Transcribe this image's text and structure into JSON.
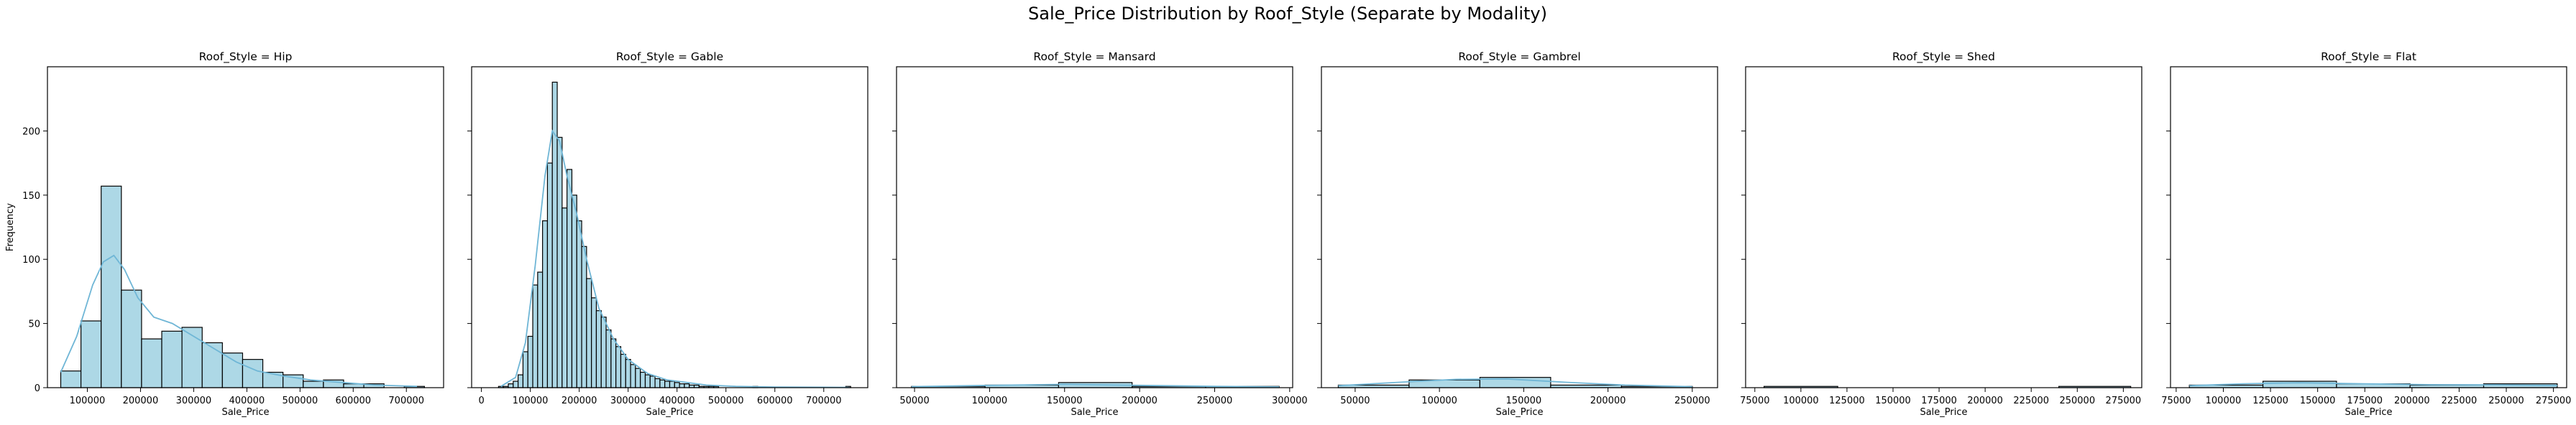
{
  "figure": {
    "suptitle": "Sale_Price Distribution by Roof_Style (Separate by Modality)"
  },
  "colors": {
    "bar_fill": "#add8e6",
    "bar_stroke": "#000000",
    "kde": "#6fb6d6"
  },
  "chart_data": [
    {
      "type": "bar",
      "title": "Roof_Style = Hip",
      "xlabel": "Sale_Price",
      "ylabel": "Frequency",
      "xlim": [
        25000,
        770000
      ],
      "ylim": [
        0,
        250
      ],
      "xticks": [
        100000,
        200000,
        300000,
        400000,
        500000,
        600000,
        700000
      ],
      "yticks": [
        0,
        50,
        100,
        150,
        200
      ],
      "bins": [
        {
          "x0": 50000,
          "x1": 88000,
          "count": 13
        },
        {
          "x0": 88000,
          "x1": 126000,
          "count": 52
        },
        {
          "x0": 126000,
          "x1": 164000,
          "count": 157
        },
        {
          "x0": 164000,
          "x1": 202000,
          "count": 76
        },
        {
          "x0": 202000,
          "x1": 240000,
          "count": 38
        },
        {
          "x0": 240000,
          "x1": 278000,
          "count": 44
        },
        {
          "x0": 278000,
          "x1": 316000,
          "count": 47
        },
        {
          "x0": 316000,
          "x1": 354000,
          "count": 35
        },
        {
          "x0": 354000,
          "x1": 392000,
          "count": 27
        },
        {
          "x0": 392000,
          "x1": 430000,
          "count": 22
        },
        {
          "x0": 430000,
          "x1": 468000,
          "count": 12
        },
        {
          "x0": 468000,
          "x1": 506000,
          "count": 10
        },
        {
          "x0": 506000,
          "x1": 544000,
          "count": 5
        },
        {
          "x0": 544000,
          "x1": 582000,
          "count": 6
        },
        {
          "x0": 582000,
          "x1": 620000,
          "count": 3
        },
        {
          "x0": 620000,
          "x1": 658000,
          "count": 3
        },
        {
          "x0": 658000,
          "x1": 696000,
          "count": 0
        },
        {
          "x0": 696000,
          "x1": 734000,
          "count": 1
        }
      ],
      "kde": [
        [
          50000,
          12
        ],
        [
          80000,
          40
        ],
        [
          110000,
          80
        ],
        [
          130000,
          98
        ],
        [
          150000,
          103
        ],
        [
          170000,
          92
        ],
        [
          195000,
          70
        ],
        [
          225000,
          55
        ],
        [
          260000,
          50
        ],
        [
          300000,
          40
        ],
        [
          340000,
          30
        ],
        [
          380000,
          20
        ],
        [
          420000,
          13
        ],
        [
          470000,
          9
        ],
        [
          520000,
          6
        ],
        [
          580000,
          4
        ],
        [
          640000,
          2
        ],
        [
          720000,
          1
        ]
      ]
    },
    {
      "type": "bar",
      "title": "Roof_Style = Gable",
      "xlabel": "Sale_Price",
      "xlim": [
        -20000,
        790000
      ],
      "ylim": [
        0,
        250
      ],
      "xticks": [
        0,
        100000,
        200000,
        300000,
        400000,
        500000,
        600000,
        700000
      ],
      "yticks": [
        0,
        50,
        100,
        150,
        200
      ],
      "bins": [
        {
          "x0": 35000,
          "x1": 45000,
          "count": 1
        },
        {
          "x0": 45000,
          "x1": 55000,
          "count": 1
        },
        {
          "x0": 55000,
          "x1": 65000,
          "count": 3
        },
        {
          "x0": 65000,
          "x1": 75000,
          "count": 5
        },
        {
          "x0": 75000,
          "x1": 85000,
          "count": 10
        },
        {
          "x0": 85000,
          "x1": 95000,
          "count": 28
        },
        {
          "x0": 95000,
          "x1": 105000,
          "count": 40
        },
        {
          "x0": 105000,
          "x1": 115000,
          "count": 80
        },
        {
          "x0": 115000,
          "x1": 125000,
          "count": 90
        },
        {
          "x0": 125000,
          "x1": 135000,
          "count": 130
        },
        {
          "x0": 135000,
          "x1": 145000,
          "count": 175
        },
        {
          "x0": 145000,
          "x1": 155000,
          "count": 238
        },
        {
          "x0": 155000,
          "x1": 165000,
          "count": 195
        },
        {
          "x0": 165000,
          "x1": 175000,
          "count": 140
        },
        {
          "x0": 175000,
          "x1": 185000,
          "count": 170
        },
        {
          "x0": 185000,
          "x1": 195000,
          "count": 150
        },
        {
          "x0": 195000,
          "x1": 205000,
          "count": 130
        },
        {
          "x0": 205000,
          "x1": 215000,
          "count": 110
        },
        {
          "x0": 215000,
          "x1": 225000,
          "count": 85
        },
        {
          "x0": 225000,
          "x1": 235000,
          "count": 70
        },
        {
          "x0": 235000,
          "x1": 245000,
          "count": 60
        },
        {
          "x0": 245000,
          "x1": 255000,
          "count": 55
        },
        {
          "x0": 255000,
          "x1": 265000,
          "count": 45
        },
        {
          "x0": 265000,
          "x1": 275000,
          "count": 38
        },
        {
          "x0": 275000,
          "x1": 285000,
          "count": 32
        },
        {
          "x0": 285000,
          "x1": 295000,
          "count": 26
        },
        {
          "x0": 295000,
          "x1": 305000,
          "count": 22
        },
        {
          "x0": 305000,
          "x1": 315000,
          "count": 18
        },
        {
          "x0": 315000,
          "x1": 325000,
          "count": 15
        },
        {
          "x0": 325000,
          "x1": 335000,
          "count": 12
        },
        {
          "x0": 335000,
          "x1": 345000,
          "count": 10
        },
        {
          "x0": 345000,
          "x1": 355000,
          "count": 9
        },
        {
          "x0": 355000,
          "x1": 365000,
          "count": 7
        },
        {
          "x0": 365000,
          "x1": 375000,
          "count": 6
        },
        {
          "x0": 375000,
          "x1": 385000,
          "count": 5
        },
        {
          "x0": 385000,
          "x1": 395000,
          "count": 5
        },
        {
          "x0": 395000,
          "x1": 405000,
          "count": 4
        },
        {
          "x0": 405000,
          "x1": 415000,
          "count": 3
        },
        {
          "x0": 415000,
          "x1": 425000,
          "count": 3
        },
        {
          "x0": 425000,
          "x1": 435000,
          "count": 2
        },
        {
          "x0": 435000,
          "x1": 445000,
          "count": 2
        },
        {
          "x0": 445000,
          "x1": 455000,
          "count": 1
        },
        {
          "x0": 455000,
          "x1": 465000,
          "count": 1
        },
        {
          "x0": 465000,
          "x1": 475000,
          "count": 1
        },
        {
          "x0": 475000,
          "x1": 485000,
          "count": 1
        },
        {
          "x0": 555000,
          "x1": 565000,
          "count": 1
        },
        {
          "x0": 745000,
          "x1": 755000,
          "count": 1
        }
      ],
      "kde": [
        [
          40000,
          1
        ],
        [
          70000,
          8
        ],
        [
          90000,
          35
        ],
        [
          110000,
          95
        ],
        [
          130000,
          165
        ],
        [
          145000,
          200
        ],
        [
          160000,
          192
        ],
        [
          175000,
          165
        ],
        [
          195000,
          135
        ],
        [
          215000,
          100
        ],
        [
          240000,
          62
        ],
        [
          270000,
          38
        ],
        [
          300000,
          22
        ],
        [
          340000,
          11
        ],
        [
          380000,
          6
        ],
        [
          420000,
          4
        ],
        [
          460000,
          2
        ],
        [
          520000,
          1
        ],
        [
          600000,
          0.5
        ],
        [
          750000,
          0.2
        ]
      ]
    },
    {
      "type": "bar",
      "title": "Roof_Style = Mansard",
      "xlabel": "Sale_Price",
      "xlim": [
        38000,
        302000
      ],
      "ylim": [
        0,
        250
      ],
      "xticks": [
        50000,
        100000,
        150000,
        200000,
        250000,
        300000
      ],
      "yticks": [
        0,
        50,
        100,
        150,
        200
      ],
      "bins": [
        {
          "x0": 48000,
          "x1": 97000,
          "count": 1
        },
        {
          "x0": 97000,
          "x1": 146000,
          "count": 2
        },
        {
          "x0": 146000,
          "x1": 195000,
          "count": 4
        },
        {
          "x0": 195000,
          "x1": 244000,
          "count": 1
        },
        {
          "x0": 244000,
          "x1": 293000,
          "count": 1
        }
      ],
      "kde": [
        [
          48000,
          0.8
        ],
        [
          100000,
          1.8
        ],
        [
          150000,
          2.6
        ],
        [
          200000,
          1.8
        ],
        [
          250000,
          1.0
        ],
        [
          293000,
          0.6
        ]
      ]
    },
    {
      "type": "bar",
      "title": "Roof_Style = Gambrel",
      "xlabel": "Sale_Price",
      "xlim": [
        30000,
        265000
      ],
      "ylim": [
        0,
        250
      ],
      "xticks": [
        50000,
        100000,
        150000,
        200000,
        250000
      ],
      "yticks": [
        0,
        50,
        100,
        150,
        200
      ],
      "bins": [
        {
          "x0": 40000,
          "x1": 82000,
          "count": 2
        },
        {
          "x0": 82000,
          "x1": 124000,
          "count": 6
        },
        {
          "x0": 124000,
          "x1": 166000,
          "count": 8
        },
        {
          "x0": 166000,
          "x1": 208000,
          "count": 2
        },
        {
          "x0": 208000,
          "x1": 250000,
          "count": 1
        }
      ],
      "kde": [
        [
          40000,
          1.5
        ],
        [
          80000,
          4.5
        ],
        [
          110000,
          6.5
        ],
        [
          140000,
          6.8
        ],
        [
          175000,
          4.2
        ],
        [
          210000,
          2.0
        ],
        [
          250000,
          0.8
        ]
      ]
    },
    {
      "type": "bar",
      "title": "Roof_Style = Shed",
      "xlabel": "Sale_Price",
      "xlim": [
        70000,
        285000
      ],
      "ylim": [
        0,
        250
      ],
      "xticks": [
        75000,
        100000,
        125000,
        150000,
        175000,
        200000,
        225000,
        250000,
        275000
      ],
      "yticks": [
        0,
        50,
        100,
        150,
        200
      ],
      "bins": [
        {
          "x0": 80000,
          "x1": 120000,
          "count": 1
        },
        {
          "x0": 120000,
          "x1": 160000,
          "count": 0
        },
        {
          "x0": 160000,
          "x1": 200000,
          "count": 0
        },
        {
          "x0": 200000,
          "x1": 240000,
          "count": 0
        },
        {
          "x0": 240000,
          "x1": 279000,
          "count": 1
        }
      ],
      "kde": []
    },
    {
      "type": "bar",
      "title": "Roof_Style = Flat",
      "xlabel": "Sale_Price",
      "xlim": [
        72000,
        282000
      ],
      "ylim": [
        0,
        250
      ],
      "xticks": [
        75000,
        100000,
        125000,
        150000,
        175000,
        200000,
        225000,
        250000,
        275000
      ],
      "yticks": [
        0,
        50,
        100,
        150,
        200
      ],
      "bins": [
        {
          "x0": 82000,
          "x1": 121000,
          "count": 2
        },
        {
          "x0": 121000,
          "x1": 160000,
          "count": 5
        },
        {
          "x0": 160000,
          "x1": 199000,
          "count": 3
        },
        {
          "x0": 199000,
          "x1": 238000,
          "count": 2
        },
        {
          "x0": 238000,
          "x1": 277000,
          "count": 3
        }
      ],
      "kde": [
        [
          82000,
          1.5
        ],
        [
          110000,
          3.0
        ],
        [
          140000,
          3.8
        ],
        [
          175000,
          3.0
        ],
        [
          210000,
          2.3
        ],
        [
          245000,
          2.2
        ],
        [
          277000,
          1.6
        ]
      ]
    }
  ]
}
